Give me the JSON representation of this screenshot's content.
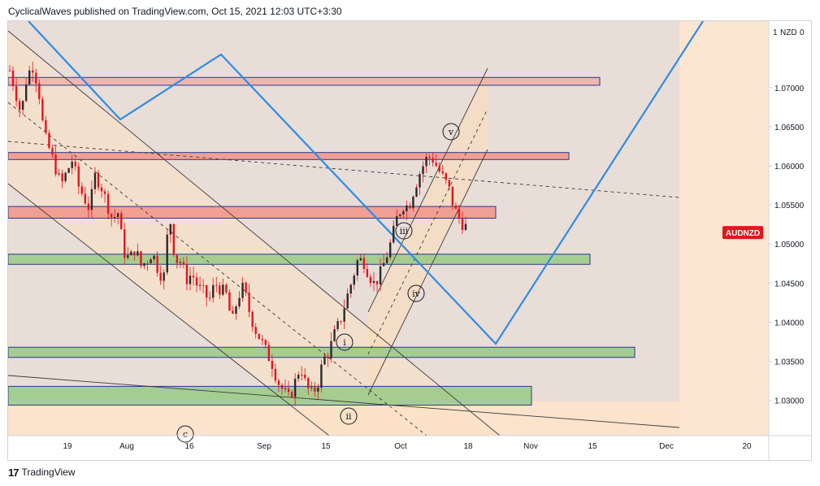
{
  "header": {
    "text": "CyclicalWaves published on TradingView.com, Oct 15, 2021 12:03 UTC+3:30"
  },
  "footer": {
    "logo": "17",
    "brand": "TradingView"
  },
  "colors": {
    "candle": "#e5141e",
    "cycle_line": "#2e8ce6",
    "price_tag": "#e5141e",
    "band_red": "#f08a80",
    "band_green": "#8cc77a",
    "band_border": "#2a3a8c"
  },
  "chart_data": {
    "type": "candlestick",
    "symbol": "AUDNZD",
    "currency_label": "NZD",
    "axis_top_label": "1",
    "axis_top_value": "0",
    "ylim": [
      1.0255,
      1.0785
    ],
    "y_ticks": [
      {
        "value": 1.07,
        "label": "1.07000"
      },
      {
        "value": 1.065,
        "label": "1.06500"
      },
      {
        "value": 1.06,
        "label": "1.06000"
      },
      {
        "value": 1.055,
        "label": "1.05500"
      },
      {
        "value": 1.05,
        "label": "1.05000"
      },
      {
        "value": 1.045,
        "label": "1.04500"
      },
      {
        "value": 1.04,
        "label": "1.04000"
      },
      {
        "value": 1.035,
        "label": "1.03500"
      },
      {
        "value": 1.03,
        "label": "1.03000"
      }
    ],
    "x_ticks": [
      "19",
      "Aug",
      "16",
      "Sep",
      "15",
      "Oct",
      "18",
      "Nov",
      "15",
      "Dec",
      "20"
    ],
    "last_price_label": "AUDNZD",
    "last_price": 1.0522,
    "horizontal_zones": [
      {
        "color": "red",
        "low": 1.0703,
        "high": 1.0713
      },
      {
        "color": "red",
        "low": 1.0608,
        "high": 1.0617
      },
      {
        "color": "red",
        "low": 1.0533,
        "high": 1.0548
      },
      {
        "color": "green",
        "low": 1.0474,
        "high": 1.0487
      },
      {
        "color": "green",
        "low": 1.0355,
        "high": 1.0368
      },
      {
        "color": "green",
        "low": 1.0294,
        "high": 1.0318
      }
    ],
    "wave_labels": [
      "i",
      "ii",
      "iii",
      "iv",
      "v",
      "c"
    ],
    "series_path_keypoints": [
      1.0722,
      1.0695,
      1.0665,
      1.0715,
      1.0728,
      1.0702,
      1.064,
      1.062,
      1.0598,
      1.0575,
      1.0592,
      1.0608,
      1.0575,
      1.056,
      1.0545,
      1.0588,
      1.0575,
      1.0553,
      1.0532,
      1.054,
      1.049,
      1.048,
      1.0495,
      1.0472,
      1.0478,
      1.049,
      1.0468,
      1.0455,
      1.054,
      1.048,
      1.0478,
      1.0455,
      1.0462,
      1.0445,
      1.0438,
      1.0428,
      1.045,
      1.0442,
      1.0435,
      1.0398,
      1.0432,
      1.0445,
      1.0415,
      1.0392,
      1.0378,
      1.0362,
      1.0348,
      1.0325,
      1.0312,
      1.0302,
      1.0322,
      1.0345,
      1.0318,
      1.0308,
      1.032,
      1.0352,
      1.0362,
      1.0385,
      1.0402,
      1.0428,
      1.0452,
      1.0478,
      1.048,
      1.0462,
      1.0448,
      1.0462,
      1.0482,
      1.0505,
      1.0535,
      1.055,
      1.0548,
      1.0572,
      1.0592,
      1.0608,
      1.0612,
      1.0598,
      1.0585,
      1.0572,
      1.0545,
      1.053,
      1.0522
    ]
  }
}
